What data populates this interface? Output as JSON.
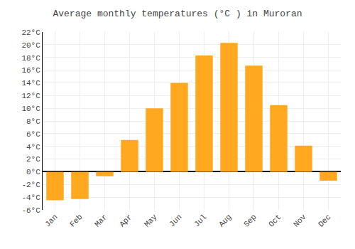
{
  "chart_data": {
    "type": "bar",
    "title": "Average monthly temperatures (°C ) in Muroran",
    "categories": [
      "Jan",
      "Feb",
      "Mar",
      "Apr",
      "May",
      "Jun",
      "Jul",
      "Aug",
      "Sep",
      "Oct",
      "Nov",
      "Dec"
    ],
    "values": [
      -4.5,
      -4.3,
      -0.7,
      5.0,
      10.0,
      14.0,
      18.3,
      20.3,
      16.7,
      10.5,
      4.1,
      -1.4
    ],
    "color": "#FFA820",
    "ylim": [
      -6,
      22
    ],
    "yticks": [
      {
        "value": -6,
        "label": "-6°C"
      },
      {
        "value": -4,
        "label": "-4°C"
      },
      {
        "value": -2,
        "label": "-2°C"
      },
      {
        "value": 0,
        "label": "0°C"
      },
      {
        "value": 2,
        "label": "2°C"
      },
      {
        "value": 4,
        "label": "4°C"
      },
      {
        "value": 6,
        "label": "6°C"
      },
      {
        "value": 8,
        "label": "8°C"
      },
      {
        "value": 10,
        "label": "10°C"
      },
      {
        "value": 12,
        "label": "12°C"
      },
      {
        "value": 14,
        "label": "14°C"
      },
      {
        "value": 16,
        "label": "16°C"
      },
      {
        "value": 18,
        "label": "18°C"
      },
      {
        "value": 20,
        "label": "20°C"
      },
      {
        "value": 22,
        "label": "22°C"
      }
    ],
    "grid": true
  }
}
